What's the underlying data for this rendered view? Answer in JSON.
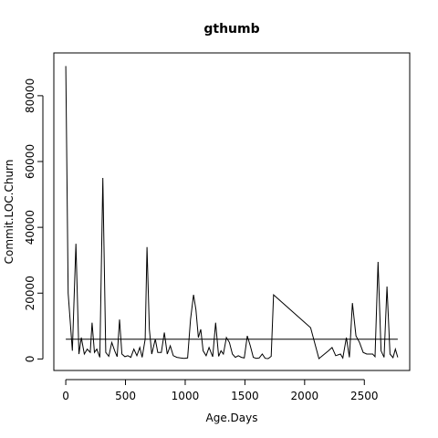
{
  "chart_data": {
    "type": "line",
    "title": "gthumb",
    "xlabel": "Age.Days",
    "ylabel": "Commit.LOC.Churn",
    "xlim": [
      -100,
      2880
    ],
    "ylim": [
      -3500,
      93000
    ],
    "x_ticks": [
      0,
      500,
      1000,
      1500,
      2000,
      2500
    ],
    "y_ticks": [
      0,
      20000,
      40000,
      60000,
      80000
    ],
    "grid": false,
    "legend": "none",
    "line_color": "#000000",
    "series": [
      {
        "x": [
          0,
          20,
          55,
          85,
          110,
          130,
          155,
          180,
          205,
          220,
          240,
          260,
          285,
          310,
          335,
          360,
          385,
          410,
          430,
          450,
          470,
          495,
          520,
          545,
          570,
          595,
          620,
          640,
          665,
          680,
          700,
          720,
          750,
          770,
          800,
          825,
          850,
          875,
          900,
          930,
          960,
          990,
          1020,
          1045,
          1070,
          1090,
          1110,
          1130,
          1150,
          1175,
          1200,
          1230,
          1255,
          1280,
          1300,
          1320,
          1345,
          1370,
          1395,
          1420,
          1445,
          1470,
          1495,
          1520,
          1545,
          1570,
          1595,
          1620,
          1645,
          1670,
          1695,
          1720,
          1740,
          2050,
          2120,
          2200,
          2230,
          2260,
          2300,
          2320,
          2350,
          2375,
          2400,
          2430,
          2460,
          2490,
          2520,
          2550,
          2570,
          2590,
          2615,
          2640,
          2665,
          2690,
          2715,
          2740,
          2760,
          2780
        ],
        "y": [
          89000,
          20000,
          2500,
          35000,
          1500,
          6500,
          1500,
          3000,
          2000,
          11000,
          2000,
          3000,
          500,
          55000,
          2000,
          800,
          5000,
          2500,
          700,
          12000,
          1500,
          700,
          1000,
          500,
          3000,
          1000,
          3500,
          500,
          6000,
          34000,
          9000,
          1500,
          6000,
          2000,
          2000,
          8000,
          1500,
          4000,
          1000,
          500,
          300,
          200,
          300,
          12000,
          19500,
          15000,
          6500,
          9000,
          2500,
          1000,
          3500,
          700,
          11000,
          800,
          2500,
          1500,
          6500,
          5000,
          1500,
          500,
          1000,
          500,
          300,
          7000,
          4000,
          500,
          200,
          300,
          1500,
          200,
          100,
          800,
          19500,
          9500,
          100,
          2500,
          3500,
          1000,
          1500,
          300,
          6500,
          500,
          17000,
          7000,
          5000,
          2000,
          1500,
          1500,
          1500,
          700,
          29500,
          2500,
          500,
          22000,
          1500,
          400,
          3000,
          500
        ]
      }
    ],
    "reference_line": {
      "type": "horizontal",
      "y": 6000,
      "x_from": 0,
      "x_to": 2780
    }
  }
}
